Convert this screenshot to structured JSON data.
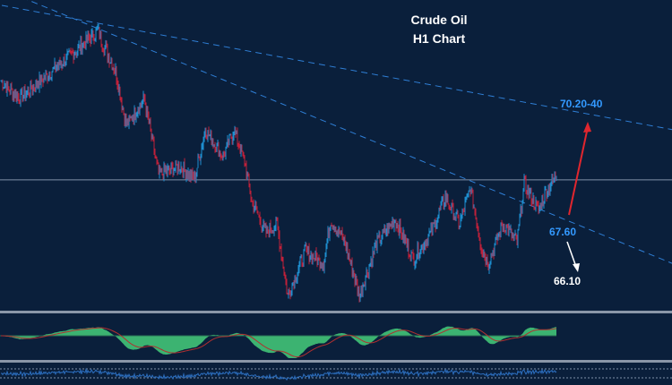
{
  "chart_data": {
    "type": "candlestick",
    "title": "Crude Oil",
    "subtitle": "H1 Chart",
    "colors": {
      "background": "#0a1f3b",
      "bull": "#1e8fd0",
      "bear": "#c0203a",
      "trendline": "#2f7fd6",
      "level": "#8090a8",
      "oscillator_fill": "#3cb371",
      "signal": "#b03030",
      "target_up": "#e0262e",
      "target_down": "#ffffff",
      "label_blue": "#3399ff"
    },
    "price_path": [
      [
        0,
        71.33
      ],
      [
        5,
        70.89
      ],
      [
        12,
        71.4
      ],
      [
        20,
        72.0
      ],
      [
        27,
        72.56
      ],
      [
        32,
        71.56
      ],
      [
        35,
        70.22
      ],
      [
        40,
        70.89
      ],
      [
        44,
        69.0
      ],
      [
        50,
        69.22
      ],
      [
        54,
        68.89
      ],
      [
        57,
        70.11
      ],
      [
        62,
        69.44
      ],
      [
        65,
        70.11
      ],
      [
        68,
        69.33
      ],
      [
        70,
        68.33
      ],
      [
        74,
        67.56
      ],
      [
        77,
        67.78
      ],
      [
        80,
        66.0
      ],
      [
        85,
        67.11
      ],
      [
        90,
        66.78
      ],
      [
        92,
        67.89
      ],
      [
        96,
        67.33
      ],
      [
        100,
        66.0
      ],
      [
        105,
        67.33
      ],
      [
        110,
        67.89
      ],
      [
        115,
        66.89
      ],
      [
        120,
        67.56
      ],
      [
        124,
        68.44
      ],
      [
        128,
        67.78
      ],
      [
        131,
        68.67
      ],
      [
        134,
        67.22
      ],
      [
        136,
        66.78
      ],
      [
        140,
        67.78
      ],
      [
        144,
        67.33
      ],
      [
        146,
        68.78
      ],
      [
        150,
        68.11
      ],
      [
        152,
        68.56
      ],
      [
        155,
        69.0
      ]
    ],
    "horizontal_level": 68.87,
    "trendlines": [
      {
        "from": [
          0,
          73.2
        ],
        "to": [
          187.5,
          70.11
        ],
        "style": "dashed"
      },
      {
        "from": [
          0,
          73.6
        ],
        "to": [
          187.5,
          66.78
        ],
        "style": "dashed"
      }
    ],
    "annotations": {
      "target_up": "70.20-40",
      "support": "67.60",
      "target_down": "66.10"
    },
    "panes": [
      "price",
      "oscillator",
      "rsi"
    ]
  }
}
